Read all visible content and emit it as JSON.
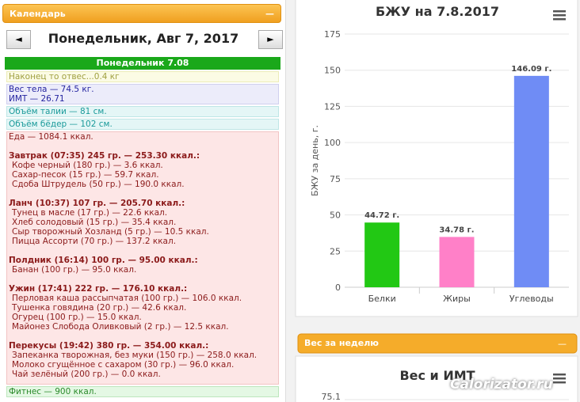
{
  "calendar": {
    "title": "Календарь",
    "prev": "◄",
    "next": "►",
    "date": "Понедельник, Авг 7, 2017",
    "day_header": "Понедельник 7.08",
    "note": "Наконец то отвес...0.4 кг",
    "weight": [
      "Вес тела — 74.5 кг.",
      "ИМТ — 26.71"
    ],
    "measures": [
      "Объём талии — 81 см.",
      "Объём бёдер — 102 см."
    ],
    "food": {
      "total": "Еда — 1084.1 ккал.",
      "meals": [
        {
          "header": "Завтрак (07:35) 245 гр. — 253.30 ккал.:",
          "items": [
            "Кофе черный (180 гр.) — 3.6 ккал.",
            "Сахар-песок (15 гр.) — 59.7 ккал.",
            "Сдоба Штрудель (50 гр.) — 190.0 ккал."
          ]
        },
        {
          "header": "Ланч (10:37) 107 гр. — 205.70 ккал.:",
          "items": [
            "Тунец в масле (17 гр.) — 22.6 ккал.",
            "Хлеб солодовый (15 гр.) — 35.4 ккал.",
            "Сыр творожный Хозланд (5 гр.) — 10.5 ккал.",
            "Пицца Ассорти (70 гр.) — 137.2 ккал."
          ]
        },
        {
          "header": "Полдник (16:14) 100 гр. — 95.00 ккал.:",
          "items": [
            "Банан (100 гр.) — 95.0 ккал."
          ]
        },
        {
          "header": "Ужин (17:41) 222 гр. — 176.10 ккал.:",
          "items": [
            "Перловая каша рассыпчатая (100 гр.) — 106.0 ккал.",
            "Тушенка говядина (20 гр.) — 42.6 ккал.",
            "Огурец (100 гр.) — 15.0 ккал.",
            "Майонез Слобода Оливковый (2 гр.) — 12.5 ккал."
          ]
        },
        {
          "header": "Перекусы (19:42) 380 гр. — 354.00 ккал.:",
          "items": [
            "Запеканка творожная, без муки (150 гр.) — 258.0 ккал.",
            "Молоко сгущённое с сахаром (30 гр.) — 96.0 ккал.",
            "Чай зелёный (200 гр.) — 0.0 ккал."
          ]
        }
      ]
    },
    "fitness": "Фитнес — 900 ккал."
  },
  "weekly_panel": {
    "title": "Вес за неделю"
  },
  "watermark": "Calorizator.ru",
  "chart_data": [
    {
      "type": "bar",
      "title": "БЖУ на 7.8.2017",
      "ylabel": "БЖУ за день, г.",
      "categories": [
        "Белки",
        "Жиры",
        "Углеводы"
      ],
      "values": [
        44.72,
        34.78,
        146.09
      ],
      "value_labels": [
        "44.72 г.",
        "34.78 г.",
        "146.09 г."
      ],
      "colors": [
        "#22c814",
        "#ff80c8",
        "#6f8cf5"
      ],
      "ylim": [
        0,
        175
      ],
      "yticks": [
        0,
        25,
        50,
        75,
        100,
        125,
        150,
        175
      ],
      "grid": true
    },
    {
      "type": "line",
      "title": "Вес и ИМТ",
      "yticks": [
        75.1
      ]
    }
  ]
}
